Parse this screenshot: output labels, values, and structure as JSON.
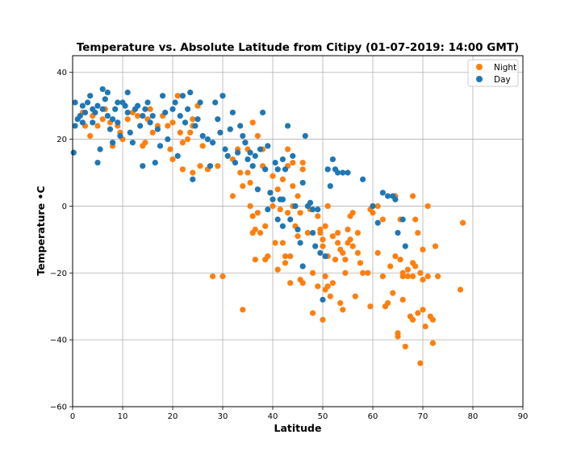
{
  "chart_data": {
    "type": "scatter",
    "title": "Temperature vs. Absolute Latitude from Citipy (01-07-2019: 14:00 GMT)",
    "xlabel": "Latitude",
    "ylabel": "Temperature •C",
    "xlim": [
      0,
      90
    ],
    "ylim": [
      -60,
      45
    ],
    "xticks": [
      0,
      10,
      20,
      30,
      40,
      50,
      60,
      70,
      80,
      90
    ],
    "yticks": [
      -60,
      -40,
      -20,
      0,
      20,
      40
    ],
    "grid": true,
    "legend_position": "top-right",
    "colors": {
      "night": "#ff7f0e",
      "day": "#1f77b4"
    },
    "series": [
      {
        "name": "Night",
        "color": "#ff7f0e",
        "points": [
          [
            2,
            28
          ],
          [
            2.5,
            24
          ],
          [
            3.5,
            21
          ],
          [
            4,
            27
          ],
          [
            5,
            24
          ],
          [
            6,
            26
          ],
          [
            6.5,
            29
          ],
          [
            7.5,
            25
          ],
          [
            8,
            18
          ],
          [
            9,
            24
          ],
          [
            9.5,
            22
          ],
          [
            10,
            20
          ],
          [
            11,
            26
          ],
          [
            12,
            28
          ],
          [
            13,
            27
          ],
          [
            14,
            18
          ],
          [
            14.5,
            19
          ],
          [
            15,
            26
          ],
          [
            15.5,
            29
          ],
          [
            16,
            22
          ],
          [
            17,
            24
          ],
          [
            18,
            27
          ],
          [
            19,
            24
          ],
          [
            19.5,
            17
          ],
          [
            20,
            14
          ],
          [
            20,
            25
          ],
          [
            21,
            33
          ],
          [
            21.5,
            22
          ],
          [
            22,
            11
          ],
          [
            22,
            19
          ],
          [
            23,
            20
          ],
          [
            23.5,
            22
          ],
          [
            24,
            24
          ],
          [
            24,
            26
          ],
          [
            24,
            10
          ],
          [
            25,
            30
          ],
          [
            25.5,
            12
          ],
          [
            26,
            18
          ],
          [
            27,
            11
          ],
          [
            28,
            -21
          ],
          [
            29,
            12
          ],
          [
            30,
            -21
          ],
          [
            32,
            3
          ],
          [
            32,
            14
          ],
          [
            33,
            17
          ],
          [
            33.5,
            10
          ],
          [
            34,
            6
          ],
          [
            34,
            -31
          ],
          [
            34.5,
            19
          ],
          [
            35,
            17
          ],
          [
            35,
            10
          ],
          [
            35.5,
            7
          ],
          [
            35.5,
            0
          ],
          [
            36,
            -3
          ],
          [
            36,
            25
          ],
          [
            36,
            -8
          ],
          [
            36.5,
            -7
          ],
          [
            36.5,
            -16
          ],
          [
            37,
            21
          ],
          [
            37,
            -2
          ],
          [
            37.5,
            -8
          ],
          [
            38,
            17
          ],
          [
            38,
            12
          ],
          [
            38.5,
            -6
          ],
          [
            38.5,
            -16
          ],
          [
            39,
            -15
          ],
          [
            40,
            9
          ],
          [
            40,
            0
          ],
          [
            40.5,
            -11
          ],
          [
            41,
            5
          ],
          [
            41,
            -19
          ],
          [
            41.5,
            -1
          ],
          [
            42,
            8
          ],
          [
            42,
            -11
          ],
          [
            42.5,
            -15
          ],
          [
            42.5,
            -17
          ],
          [
            43,
            17
          ],
          [
            43,
            12
          ],
          [
            43,
            -2
          ],
          [
            43.5,
            -15
          ],
          [
            43.5,
            -23
          ],
          [
            44,
            13
          ],
          [
            44,
            6
          ],
          [
            44,
            0
          ],
          [
            44.5,
            -6
          ],
          [
            45,
            3
          ],
          [
            45,
            -9
          ],
          [
            45.5,
            -2
          ],
          [
            45.5,
            -22
          ],
          [
            46,
            13
          ],
          [
            46,
            11
          ],
          [
            46,
            -18
          ],
          [
            46,
            -23
          ],
          [
            47,
            -8
          ],
          [
            47.5,
            -1
          ],
          [
            48,
            -32
          ],
          [
            48,
            -20
          ],
          [
            49,
            -3
          ],
          [
            49,
            -24
          ],
          [
            49.5,
            -7
          ],
          [
            49.5,
            -8
          ],
          [
            50,
            -10
          ],
          [
            50,
            -34
          ],
          [
            50,
            -12
          ],
          [
            50.5,
            -6
          ],
          [
            50.5,
            -21
          ],
          [
            50.5,
            -25
          ],
          [
            51,
            -15
          ],
          [
            51,
            0
          ],
          [
            51,
            -24
          ],
          [
            51.5,
            -27
          ],
          [
            52,
            -9
          ],
          [
            52,
            -23
          ],
          [
            52.5,
            -16
          ],
          [
            53,
            -11
          ],
          [
            53,
            -8
          ],
          [
            53.5,
            -13
          ],
          [
            53.5,
            -29
          ],
          [
            54,
            -31
          ],
          [
            54,
            -14
          ],
          [
            54.5,
            -16
          ],
          [
            54.5,
            -20
          ],
          [
            55,
            -7
          ],
          [
            55,
            -11
          ],
          [
            55.5,
            -3
          ],
          [
            55.5,
            -10
          ],
          [
            56,
            -2
          ],
          [
            56,
            -12
          ],
          [
            56.5,
            -27
          ],
          [
            57,
            -14
          ],
          [
            57,
            -8
          ],
          [
            57.5,
            -17
          ],
          [
            58,
            -20
          ],
          [
            59,
            -20
          ],
          [
            59.5,
            -1
          ],
          [
            59.5,
            -30
          ],
          [
            60,
            -2
          ],
          [
            60,
            0
          ],
          [
            61,
            -14
          ],
          [
            62,
            -4
          ],
          [
            62,
            -21
          ],
          [
            62.5,
            -30
          ],
          [
            63,
            -29
          ],
          [
            63.5,
            -18
          ],
          [
            64,
            -26
          ],
          [
            64.5,
            -15
          ],
          [
            65,
            -39
          ],
          [
            65,
            -38
          ],
          [
            65.5,
            -4
          ],
          [
            65.5,
            -16
          ],
          [
            66,
            -20
          ],
          [
            66,
            -28
          ],
          [
            66,
            -21
          ],
          [
            66.5,
            -42
          ],
          [
            67,
            -19
          ],
          [
            67,
            -21
          ],
          [
            67.5,
            -33
          ],
          [
            68,
            -21
          ],
          [
            68,
            -34
          ],
          [
            68,
            -17
          ],
          [
            68.5,
            -4
          ],
          [
            68.5,
            -18
          ],
          [
            69,
            -32
          ],
          [
            69,
            -8
          ],
          [
            69.5,
            -20
          ],
          [
            69.5,
            -47
          ],
          [
            70,
            -13
          ],
          [
            70,
            -22
          ],
          [
            70,
            -31
          ],
          [
            70.5,
            -36
          ],
          [
            71,
            -21
          ],
          [
            71,
            0
          ],
          [
            71.5,
            -33
          ],
          [
            72,
            -41
          ],
          [
            72,
            -34
          ],
          [
            72.5,
            -12
          ],
          [
            73,
            -21
          ],
          [
            77.5,
            -25
          ],
          [
            78,
            -5
          ],
          [
            68,
            3
          ],
          [
            61,
            0
          ],
          [
            64.5,
            3
          ]
        ]
      },
      {
        "name": "Day",
        "color": "#1f77b4",
        "points": [
          [
            0.2,
            16
          ],
          [
            0.5,
            31
          ],
          [
            0.5,
            24
          ],
          [
            1,
            26
          ],
          [
            1.5,
            27
          ],
          [
            2,
            25
          ],
          [
            2,
            30
          ],
          [
            2.5,
            28
          ],
          [
            3,
            31
          ],
          [
            3.5,
            33
          ],
          [
            4,
            25
          ],
          [
            4,
            29
          ],
          [
            4.5,
            28
          ],
          [
            5,
            13
          ],
          [
            5,
            30
          ],
          [
            5.5,
            17
          ],
          [
            6,
            35
          ],
          [
            6,
            29
          ],
          [
            6.5,
            32
          ],
          [
            7,
            34
          ],
          [
            7,
            27
          ],
          [
            7.5,
            23
          ],
          [
            8,
            26
          ],
          [
            8,
            19
          ],
          [
            8.5,
            29
          ],
          [
            9,
            31
          ],
          [
            9,
            25
          ],
          [
            9.5,
            21
          ],
          [
            10,
            31
          ],
          [
            10.5,
            30
          ],
          [
            11,
            34
          ],
          [
            11,
            28
          ],
          [
            11.5,
            22
          ],
          [
            12,
            19
          ],
          [
            12.5,
            29
          ],
          [
            13,
            30
          ],
          [
            13.5,
            24
          ],
          [
            14,
            12
          ],
          [
            14,
            27
          ],
          [
            14.5,
            29
          ],
          [
            15,
            31
          ],
          [
            15.5,
            25
          ],
          [
            16,
            27
          ],
          [
            16.5,
            13
          ],
          [
            17,
            23
          ],
          [
            17.5,
            18
          ],
          [
            18,
            33
          ],
          [
            18.5,
            28
          ],
          [
            19,
            20
          ],
          [
            20,
            29
          ],
          [
            20.5,
            31
          ],
          [
            21,
            15
          ],
          [
            21.5,
            27
          ],
          [
            22,
            33
          ],
          [
            22.5,
            25
          ],
          [
            23,
            29
          ],
          [
            23.5,
            34
          ],
          [
            24,
            8
          ],
          [
            24.5,
            24
          ],
          [
            25,
            26
          ],
          [
            25.5,
            31
          ],
          [
            26,
            21
          ],
          [
            27,
            20
          ],
          [
            27.5,
            12
          ],
          [
            28,
            19
          ],
          [
            28.5,
            31
          ],
          [
            29,
            26
          ],
          [
            29.5,
            22
          ],
          [
            30,
            33
          ],
          [
            30.5,
            17
          ],
          [
            31,
            15
          ],
          [
            31.5,
            23
          ],
          [
            32,
            28
          ],
          [
            32.5,
            13
          ],
          [
            33,
            16
          ],
          [
            33.5,
            24
          ],
          [
            34,
            21
          ],
          [
            34.5,
            19
          ],
          [
            35,
            14
          ],
          [
            35.5,
            16
          ],
          [
            36,
            12
          ],
          [
            36.5,
            15
          ],
          [
            37,
            5
          ],
          [
            37.5,
            17
          ],
          [
            38,
            28
          ],
          [
            38.5,
            11
          ],
          [
            39,
            18
          ],
          [
            39.5,
            4
          ],
          [
            40,
            2
          ],
          [
            40.5,
            13
          ],
          [
            41,
            11
          ],
          [
            41,
            -4
          ],
          [
            41.5,
            2
          ],
          [
            42,
            14
          ],
          [
            42,
            -6
          ],
          [
            42.5,
            11
          ],
          [
            43,
            24
          ],
          [
            43.5,
            -4
          ],
          [
            44,
            15
          ],
          [
            44.5,
            0
          ],
          [
            45,
            -7
          ],
          [
            45.5,
            -11
          ],
          [
            46,
            -18
          ],
          [
            46,
            7
          ],
          [
            46.5,
            21
          ],
          [
            47,
            0
          ],
          [
            47.5,
            1
          ],
          [
            48,
            -1
          ],
          [
            48.5,
            -12
          ],
          [
            49,
            -1
          ],
          [
            49.5,
            -14
          ],
          [
            50,
            -28
          ],
          [
            50.5,
            -15
          ],
          [
            51,
            11
          ],
          [
            51.5,
            6
          ],
          [
            52,
            14
          ],
          [
            52.5,
            11
          ],
          [
            53,
            10
          ],
          [
            54,
            10
          ],
          [
            55,
            10
          ],
          [
            58,
            8
          ],
          [
            60,
            0
          ],
          [
            61,
            -5
          ],
          [
            62,
            4
          ],
          [
            63,
            3
          ],
          [
            64,
            3
          ],
          [
            64.5,
            2
          ],
          [
            65,
            -8
          ],
          [
            66,
            -4
          ],
          [
            66.5,
            -12
          ],
          [
            42,
            2
          ],
          [
            39,
            -1
          ],
          [
            48,
            -8
          ]
        ]
      }
    ]
  }
}
